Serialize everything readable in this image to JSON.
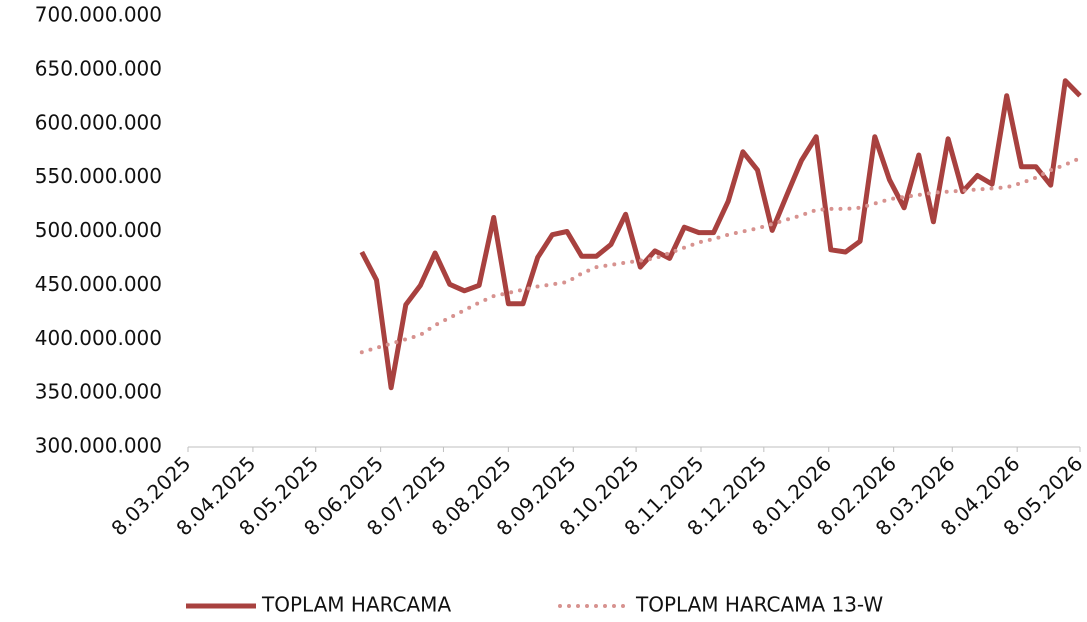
{
  "chart_data": {
    "type": "line",
    "x": [
      "30.05.2025",
      "6.06.2025",
      "13.06.2025",
      "20.06.2025",
      "27.06.2025",
      "4.07.2025",
      "11.07.2025",
      "18.07.2025",
      "25.07.2025",
      "1.08.2025",
      "8.08.2025",
      "15.08.2025",
      "22.08.2025",
      "29.08.2025",
      "5.09.2025",
      "12.09.2025",
      "19.09.2025",
      "26.09.2025",
      "3.10.2025",
      "10.10.2025",
      "17.10.2025",
      "24.10.2025",
      "31.10.2025",
      "7.11.2025",
      "14.11.2025",
      "21.11.2025",
      "28.11.2025",
      "5.12.2025",
      "12.12.2025",
      "19.12.2025",
      "26.12.2025",
      "2.01.2026",
      "9.01.2026",
      "16.01.2026",
      "23.01.2026",
      "30.01.2026",
      "6.02.2026",
      "13.02.2026",
      "20.02.2026",
      "27.02.2026",
      "6.03.2026",
      "13.03.2026",
      "20.03.2026",
      "27.03.2026",
      "3.04.2026",
      "10.04.2026",
      "17.04.2026",
      "24.04.2026",
      "1.05.2026",
      "8.05.2026"
    ],
    "series": [
      {
        "name": "TOPLAM HARCAMA",
        "color": "#a8413f",
        "style": "solid",
        "values": [
          481000000,
          455000000,
          355000000,
          432000000,
          450000000,
          480000000,
          451000000,
          445000000,
          450000000,
          513000000,
          433000000,
          433000000,
          476000000,
          497000000,
          500000000,
          477000000,
          477000000,
          488000000,
          516000000,
          467000000,
          482000000,
          475000000,
          504000000,
          499000000,
          499000000,
          528000000,
          574000000,
          557000000,
          501000000,
          534000000,
          566000000,
          588000000,
          483000000,
          481000000,
          491000000,
          588000000,
          548000000,
          522000000,
          571000000,
          509000000,
          586000000,
          537000000,
          552000000,
          544000000,
          626000000,
          560000000,
          560000000,
          543000000,
          640000000,
          626000000
        ]
      },
      {
        "name": "TOPLAM HARCAMA 13-W",
        "color": "#d7928f",
        "style": "dotted",
        "values": [
          388000000,
          392000000,
          396000000,
          400000000,
          404000000,
          413000000,
          420000000,
          427000000,
          434000000,
          440000000,
          443000000,
          446000000,
          449000000,
          451000000,
          453000000,
          461000000,
          467000000,
          469000000,
          471000000,
          473000000,
          475000000,
          480000000,
          485000000,
          490000000,
          493000000,
          497000000,
          500000000,
          503000000,
          507000000,
          511000000,
          515000000,
          520000000,
          521000000,
          521000000,
          522000000,
          526000000,
          530000000,
          532000000,
          534000000,
          536000000,
          537000000,
          538000000,
          539000000,
          540000000,
          541000000,
          545000000,
          550000000,
          557000000,
          562000000,
          568000000
        ]
      }
    ],
    "xlim": [
      "8.03.2025",
      "8.05.2026"
    ],
    "xticks": [
      "8.03.2025",
      "8.04.2025",
      "8.05.2025",
      "8.06.2025",
      "8.07.2025",
      "8.08.2025",
      "8.09.2025",
      "8.10.2025",
      "8.11.2025",
      "8.12.2025",
      "8.01.2026",
      "8.02.2026",
      "8.03.2026",
      "8.04.2026",
      "8.05.2026"
    ],
    "ylim": [
      300000000,
      700000000
    ],
    "yticks": [
      {
        "value": 300000000,
        "label": "300.000.000"
      },
      {
        "value": 350000000,
        "label": "350.000.000"
      },
      {
        "value": 400000000,
        "label": "400.000.000"
      },
      {
        "value": 450000000,
        "label": "450.000.000"
      },
      {
        "value": 500000000,
        "label": "500.000.000"
      },
      {
        "value": 550000000,
        "label": "550.000.000"
      },
      {
        "value": 600000000,
        "label": "600.000.000"
      },
      {
        "value": 650000000,
        "label": "650.000.000"
      },
      {
        "value": 700000000,
        "label": "700.000.000"
      }
    ],
    "grid": false,
    "legend": "bottom"
  }
}
